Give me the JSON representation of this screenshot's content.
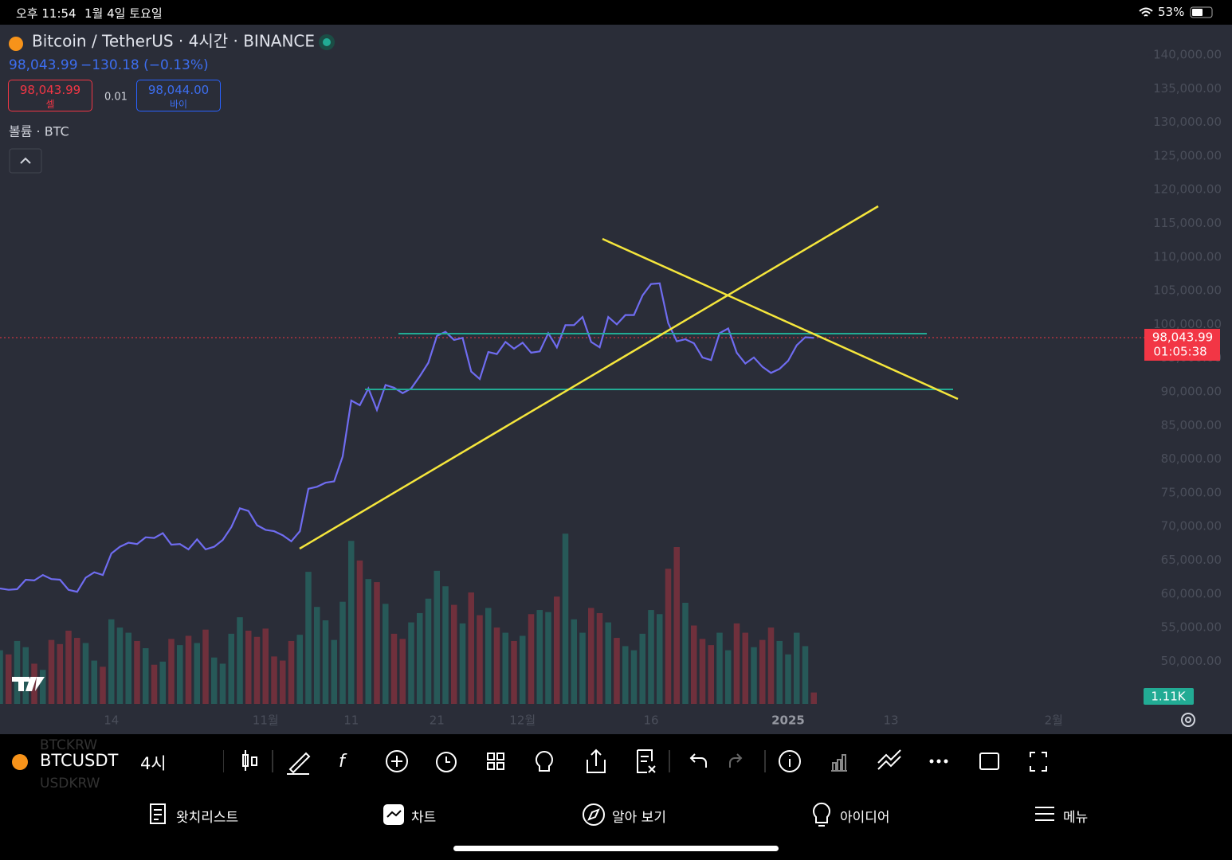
{
  "status_bar": {
    "time": "오후 11:54",
    "date": "1월 4일 토요일",
    "battery": "53%"
  },
  "header": {
    "symbol_title": "Bitcoin / TetherUS · 4시간 · BINANCE",
    "price": "98,043.99",
    "change": "−130.18 (−0.13%)",
    "sell_price": "98,043.99",
    "sell_label": "셀",
    "spread": "0.01",
    "buy_price": "98,044.00",
    "buy_label": "바이",
    "volume_label": "볼륨 · BTC"
  },
  "chart_data": {
    "type": "line",
    "categories": [
      null,
      null,
      null,
      null,
      null,
      null,
      null,
      null,
      null,
      null,
      null,
      null,
      null,
      "14",
      null,
      null,
      null,
      null,
      null,
      null,
      null,
      null,
      null,
      null,
      null,
      null,
      null,
      null,
      null,
      null,
      null,
      "11월",
      null,
      null,
      null,
      null,
      null,
      null,
      null,
      null,
      null,
      "11",
      null,
      null,
      null,
      null,
      null,
      null,
      null,
      null,
      null,
      "21",
      null,
      null,
      null,
      null,
      null,
      null,
      null,
      null,
      null,
      "12월",
      null,
      null,
      null,
      null,
      null,
      null,
      null,
      null,
      null,
      null,
      null,
      null,
      null,
      null,
      "16",
      null,
      null,
      null,
      null,
      null,
      null,
      null,
      null,
      null,
      null,
      null,
      null,
      null,
      null,
      null,
      "2025",
      null,
      null,
      null,
      null,
      null,
      null,
      null,
      null,
      null,
      null,
      null,
      "13",
      null,
      null,
      null,
      null,
      null,
      null,
      null,
      null,
      null,
      null,
      null,
      null,
      null,
      null,
      null,
      null,
      null,
      null,
      "2월",
      null,
      null,
      null,
      null,
      null,
      null,
      null,
      null,
      null,
      null,
      null
    ],
    "series": [
      {
        "name": "BTCUSDT",
        "color": "#6f6cf0",
        "values": [
          60800,
          60600,
          60700,
          62100,
          62000,
          62800,
          62200,
          62100,
          60600,
          60300,
          62400,
          63200,
          62800,
          66000,
          67000,
          67600,
          67400,
          68400,
          68300,
          69000,
          67300,
          67400,
          66600,
          68100,
          66600,
          67000,
          68000,
          69900,
          72700,
          72300,
          70200,
          69500,
          69300,
          68700,
          67800,
          69300,
          75600,
          75900,
          76500,
          76700,
          80400,
          88700,
          88000,
          90500,
          87300,
          91000,
          90600,
          89800,
          90500,
          92300,
          94300,
          98300,
          98900,
          97700,
          98000,
          93000,
          91900,
          95900,
          95600,
          97400,
          96400,
          97300,
          95800,
          96000,
          98700,
          96600,
          99900,
          99900,
          101100,
          97400,
          96600,
          101100,
          100000,
          101400,
          101400,
          104300,
          106000,
          106100,
          100200,
          97500,
          97800,
          97200,
          95100,
          94700,
          98700,
          99400,
          95800,
          94200,
          95100,
          93700,
          92800,
          93400,
          94600,
          96900,
          98100,
          98000,
          null,
          null,
          null,
          null,
          null,
          null,
          null,
          null,
          null,
          null,
          null,
          null,
          null,
          null,
          null,
          null,
          null,
          null,
          null,
          null,
          null,
          null,
          null,
          null,
          null,
          null,
          null,
          null,
          null,
          null,
          null,
          null,
          null,
          null,
          null,
          null,
          null,
          null,
          null
        ]
      },
      {
        "name": "볼륨",
        "axis": "y2",
        "values": [
          5200,
          4800,
          6100,
          5500,
          3900,
          3300,
          6200,
          5800,
          7100,
          6400,
          5900,
          4200,
          3600,
          8200,
          7400,
          6900,
          6100,
          5400,
          3800,
          4100,
          6300,
          5700,
          6600,
          5900,
          7200,
          4500,
          3900,
          6800,
          8400,
          7100,
          6500,
          7300,
          4600,
          4200,
          6100,
          6700,
          12800,
          9400,
          8100,
          6200,
          9900,
          15800,
          13900,
          12100,
          11800,
          9700,
          6800,
          6300,
          7900,
          8800,
          10200,
          12900,
          11400,
          9600,
          7800,
          10800,
          8600,
          9300,
          7400,
          6900,
          6100,
          6600,
          8700,
          9100,
          8900,
          10400,
          16500,
          8200,
          6900,
          9300,
          8800,
          7900,
          6400,
          5600,
          5200,
          6800,
          9100,
          8700,
          13100,
          15200,
          9800,
          7600,
          6300,
          5700,
          6900,
          5200,
          7800,
          6900,
          5500,
          6200,
          7400,
          6100,
          4800,
          6900,
          5600,
          1110,
          null,
          null,
          null,
          null,
          null,
          null,
          null,
          null,
          null,
          null,
          null,
          null,
          null,
          null,
          null,
          null,
          null,
          null,
          null,
          null,
          null,
          null,
          null,
          null,
          null,
          null,
          null,
          null,
          null,
          null,
          null,
          null,
          null,
          null,
          null,
          null,
          null,
          null,
          null
        ]
      }
    ],
    "up_color": "#22ab94",
    "down_color": "#f23645",
    "ylim": [
      43660,
      144380
    ],
    "yticks": [
      {
        "value": 50000,
        "label": "50,000.00"
      },
      {
        "value": 55000,
        "label": "55,000.00"
      },
      {
        "value": 60000,
        "label": "60,000.00"
      },
      {
        "value": 65000,
        "label": "65,000.00"
      },
      {
        "value": 70000,
        "label": "70,000.00"
      },
      {
        "value": 75000,
        "label": "75,000.00"
      },
      {
        "value": 80000,
        "label": "80,000.00"
      },
      {
        "value": 85000,
        "label": "85,000.00"
      },
      {
        "value": 90000,
        "label": "90,000.00"
      },
      {
        "value": 95000,
        "label": "95,000.00"
      },
      {
        "value": 100000,
        "label": "100,000.00"
      },
      {
        "value": 105000,
        "label": "105,000.00"
      },
      {
        "value": 110000,
        "label": "110,000.00"
      },
      {
        "value": 115000,
        "label": "115,000.00"
      },
      {
        "value": 120000,
        "label": "120,000.00"
      },
      {
        "value": 125000,
        "label": "125,000.00"
      },
      {
        "value": 130000,
        "label": "130,000.00"
      },
      {
        "value": 135000,
        "label": "135,000.00"
      },
      {
        "value": 140000,
        "label": "140,000.00"
      }
    ],
    "y2lim": [
      0,
      25000
    ],
    "last_price": {
      "value": 98043.99,
      "label": "98,043.99"
    },
    "countdown": "01:05:38",
    "last_volume": {
      "value": 1110,
      "label": "1.11K"
    }
  },
  "toolbar": {
    "symbol": "BTCUSDT",
    "interval": "4시",
    "ghost_1": "BTCKRW",
    "ghost_2": "USDKRW"
  },
  "tab_bar": {
    "tabs": [
      "왓치리스트",
      "차트",
      "알아 보기",
      "아이디어",
      "메뉴"
    ]
  }
}
